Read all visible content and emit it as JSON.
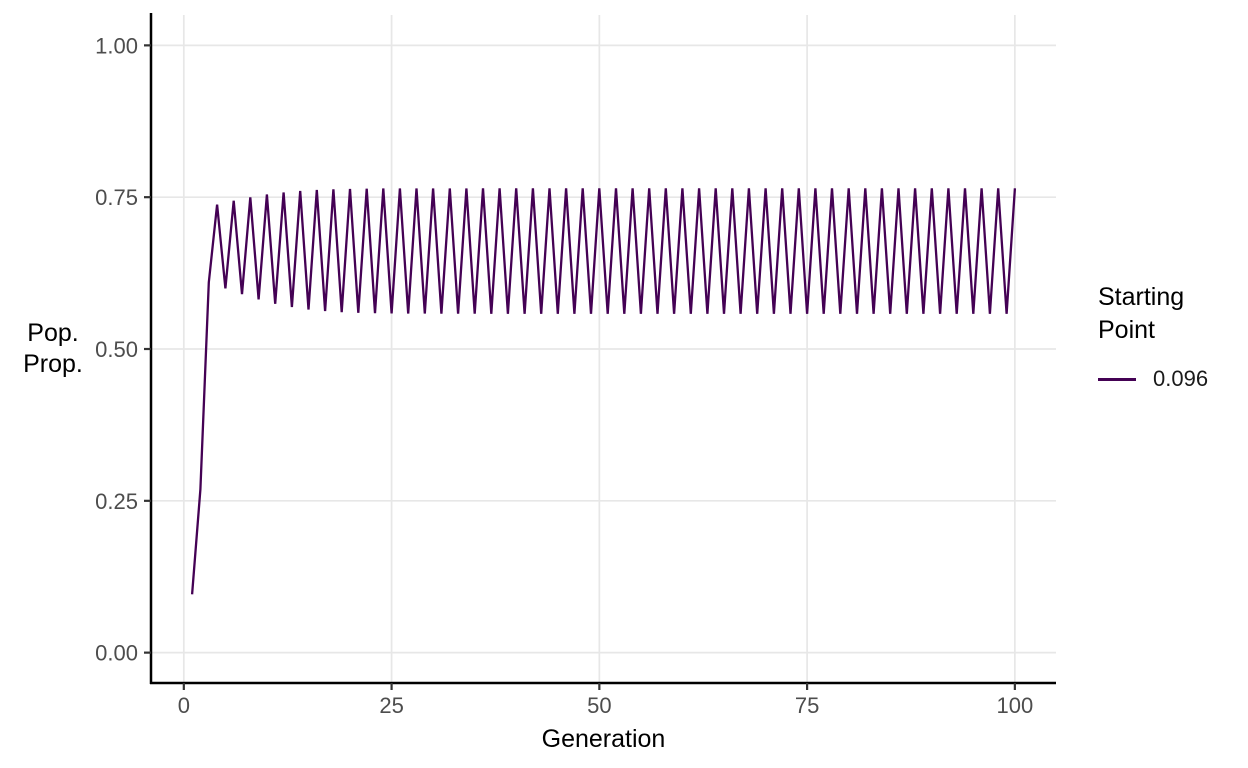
{
  "figure": {
    "x_axis_title": "Generation",
    "y_axis_title_line1": "Pop.",
    "y_axis_title_line2": "Prop.",
    "legend": {
      "title_line1": "Starting",
      "title_line2": "Point",
      "items": [
        {
          "label": "0.096",
          "color": "#440154"
        }
      ]
    }
  },
  "colors": {
    "line": "#440154",
    "grid": "#e7e7e7",
    "axis": "#000000",
    "tick": "#333333",
    "tick_label": "#4d4d4d",
    "background": "#ffffff"
  },
  "chart_data": {
    "type": "line",
    "title": "",
    "xlabel": "Generation",
    "ylabel": "Pop. Prop.",
    "legend_title": "Starting Point",
    "legend_position": "right",
    "grid": "major-only",
    "x_ticks": [
      0,
      25,
      50,
      75,
      100
    ],
    "x_tick_labels": [
      "0",
      "25",
      "50",
      "75",
      "100"
    ],
    "y_ticks": [
      0,
      0.25,
      0.5,
      0.75,
      1.0
    ],
    "y_tick_labels": [
      "0.00",
      "0.25",
      "0.50",
      "0.75",
      "1.00"
    ],
    "xlim": [
      -3.95,
      104.95
    ],
    "ylim": [
      -0.05,
      1.05
    ],
    "series": [
      {
        "name": "0.096",
        "color": "#440154",
        "x_start": 1,
        "values": [
          0.096,
          0.26903,
          0.60962,
          0.73775,
          0.59977,
          0.74414,
          0.59023,
          0.74977,
          0.58161,
          0.75435,
          0.57445,
          0.75782,
          0.56894,
          0.76027,
          0.56501,
          0.76189,
          0.56238,
          0.76294,
          0.56068,
          0.7636,
          0.5596,
          0.76399,
          0.55896,
          0.76423,
          0.55858,
          0.76437,
          0.55835,
          0.76444,
          0.55822,
          0.76449,
          0.55814,
          0.76452,
          0.55809,
          0.76454,
          0.55806,
          0.76456,
          0.55804,
          0.76456,
          0.55803,
          0.76457,
          0.55802,
          0.76457,
          0.55802,
          0.76457,
          0.55801,
          0.76457,
          0.55801,
          0.76457,
          0.55801,
          0.76457,
          0.55801,
          0.76457,
          0.55801,
          0.76457,
          0.55801,
          0.76457,
          0.55801,
          0.76457,
          0.55801,
          0.76457,
          0.55801,
          0.76457,
          0.55801,
          0.76457,
          0.55801,
          0.76457,
          0.55801,
          0.76457,
          0.55801,
          0.76457,
          0.55801,
          0.76457,
          0.55801,
          0.76457,
          0.55801,
          0.76457,
          0.55801,
          0.76457,
          0.55801,
          0.76457,
          0.55801,
          0.76457,
          0.55801,
          0.76457,
          0.55801,
          0.76457,
          0.55801,
          0.76457,
          0.55801,
          0.76457,
          0.55801,
          0.76457,
          0.55801,
          0.76457,
          0.55801,
          0.76457,
          0.55801,
          0.76457,
          0.55801,
          0.76457
        ]
      }
    ]
  }
}
